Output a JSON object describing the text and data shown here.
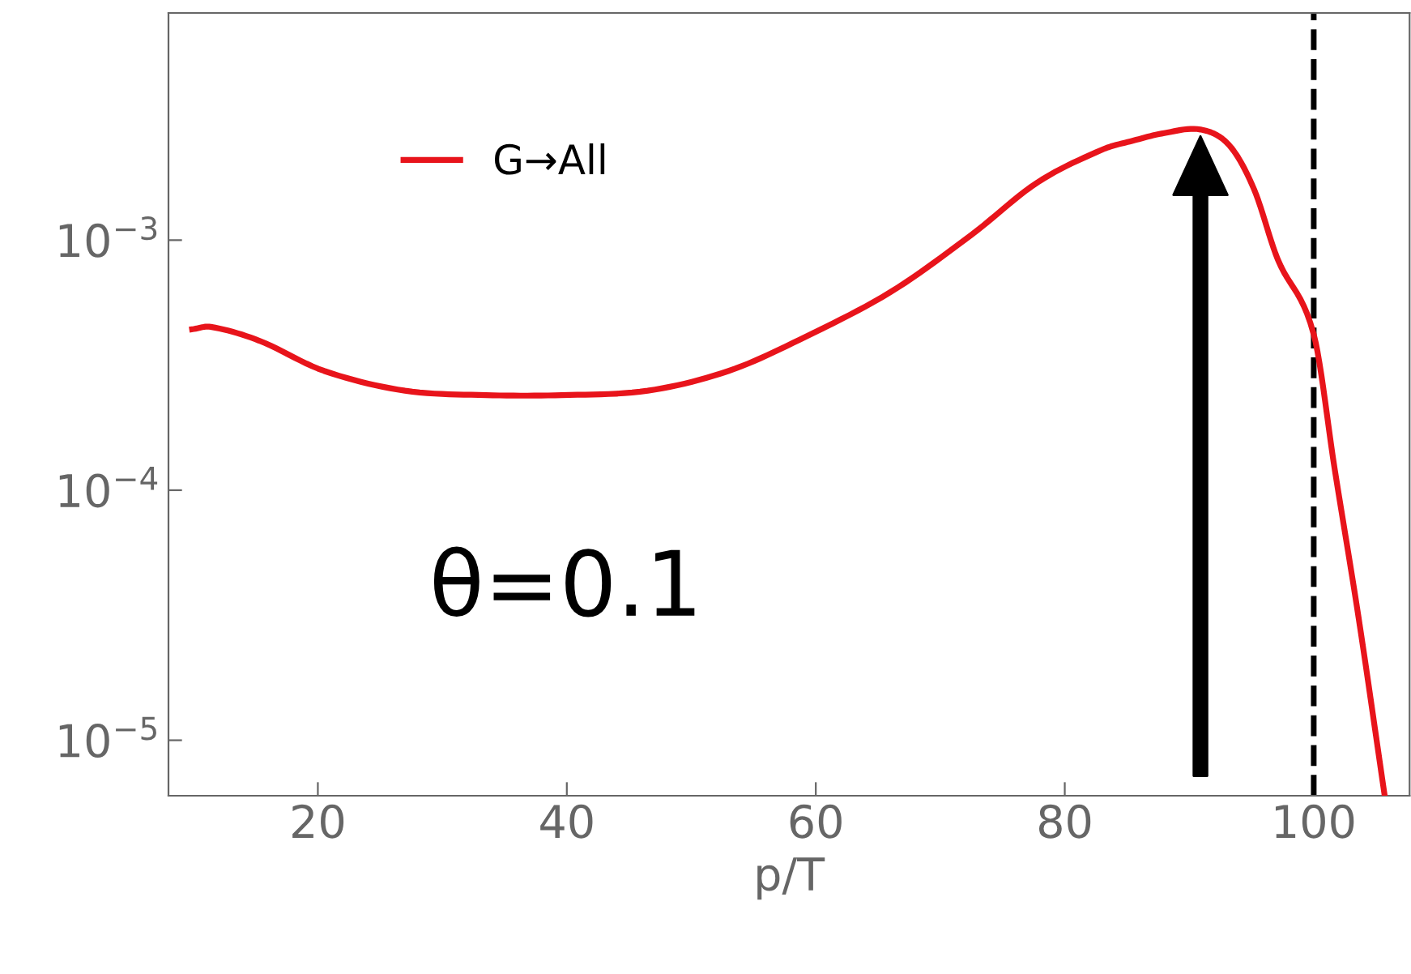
{
  "chart_data": {
    "type": "line",
    "xlabel": "p/T",
    "log": "y",
    "xlim": [
      8,
      107.7
    ],
    "ylim": [
      6e-06,
      0.0081
    ],
    "xticks": [
      20,
      40,
      60,
      80,
      100
    ],
    "yticks": [
      {
        "value": 0.001,
        "label": "10$^{−3}$"
      },
      {
        "value": 0.0001,
        "label": "10$^{−4}$"
      },
      {
        "value": 1e-05,
        "label": "10$^{−5}$"
      }
    ],
    "series": [
      {
        "name": "G→All",
        "color": "#e8141b",
        "x": [
          9.9,
          11.4,
          15.3,
          20.5,
          27,
          33.5,
          39.6,
          46.5,
          53,
          58.7,
          66,
          72.5,
          77.8,
          83,
          85.5,
          88,
          90.9,
          93.2,
          95.2,
          97.1,
          100,
          101.7,
          103.6,
          105.7
        ],
        "values": [
          0.00044,
          0.00045,
          0.000396,
          0.0003,
          0.00025,
          0.00024,
          0.00024,
          0.00025,
          0.0003,
          0.0004,
          0.00062,
          0.00105,
          0.0017,
          0.0023,
          0.0025,
          0.00268,
          0.00277,
          0.0024,
          0.0016,
          0.00084,
          0.00042,
          0.00012,
          3.1e-05,
          6e-06
        ]
      }
    ],
    "ref_lines": [
      {
        "axis": "x",
        "value": 100,
        "color": "#000000",
        "line_style": "dashed"
      }
    ],
    "annotations": [
      "θ=0.1"
    ],
    "legend": "top left",
    "grid": false,
    "marker": "none",
    "line_style": "solid"
  }
}
